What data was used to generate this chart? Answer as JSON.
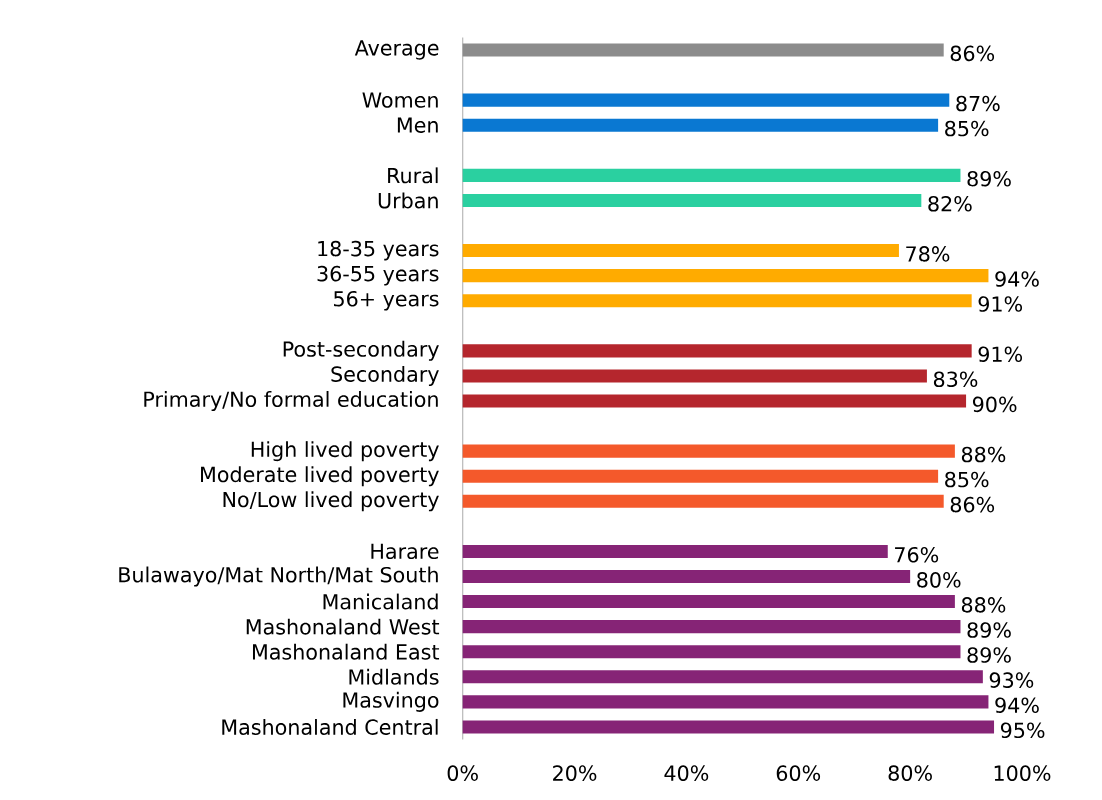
{
  "chart_data": {
    "type": "bar",
    "orientation": "horizontal",
    "categories": [
      "Average",
      null,
      "Women",
      "Men",
      null,
      "Rural",
      "Urban",
      null,
      "18-35 years",
      "36-55 years",
      "56+ years",
      null,
      "Post-secondary",
      "Secondary",
      "Primary/No formal education",
      null,
      "High lived poverty",
      "Moderate lived poverty",
      "No/Low lived poverty",
      null,
      "Harare",
      "Bulawayo/Mat North/Mat South",
      "Manicaland",
      "Mashonaland West",
      "Mashonaland East",
      "Midlands",
      "Masvingo",
      "Mashonaland Central"
    ],
    "values": [
      86,
      null,
      87,
      85,
      null,
      89,
      82,
      null,
      78,
      94,
      91,
      null,
      91,
      83,
      90,
      null,
      88,
      85,
      86,
      null,
      76,
      80,
      88,
      89,
      89,
      93,
      94,
      95
    ],
    "value_labels": [
      "86%",
      null,
      "87%",
      "85%",
      null,
      "89%",
      "82%",
      null,
      "78%",
      "94%",
      "91%",
      null,
      "91%",
      "83%",
      "90%",
      null,
      "88%",
      "85%",
      "86%",
      null,
      "76%",
      "80%",
      "88%",
      "89%",
      "89%",
      "93%",
      "94%",
      "95%"
    ],
    "colors": [
      "#8c8c8c",
      null,
      "#0a78d2",
      "#0a78d2",
      null,
      "#2ad0a0",
      "#2ad0a0",
      null,
      "#ffab00",
      "#ffab00",
      "#ffab00",
      null,
      "#b5262d",
      "#b5262d",
      "#b5262d",
      null,
      "#f4592b",
      "#f4592b",
      "#f4592b",
      null,
      "#862476",
      "#862476",
      "#862476",
      "#862476",
      "#862476",
      "#862476",
      "#862476",
      "#862476"
    ],
    "xlim": [
      0,
      100
    ],
    "xticks": [
      {
        "value": 0,
        "label": "0%"
      },
      {
        "value": 20,
        "label": "20%"
      },
      {
        "value": 40,
        "label": "40%"
      },
      {
        "value": 60,
        "label": "60%"
      },
      {
        "value": 80,
        "label": "80%"
      },
      {
        "value": 100,
        "label": "100%"
      }
    ]
  }
}
